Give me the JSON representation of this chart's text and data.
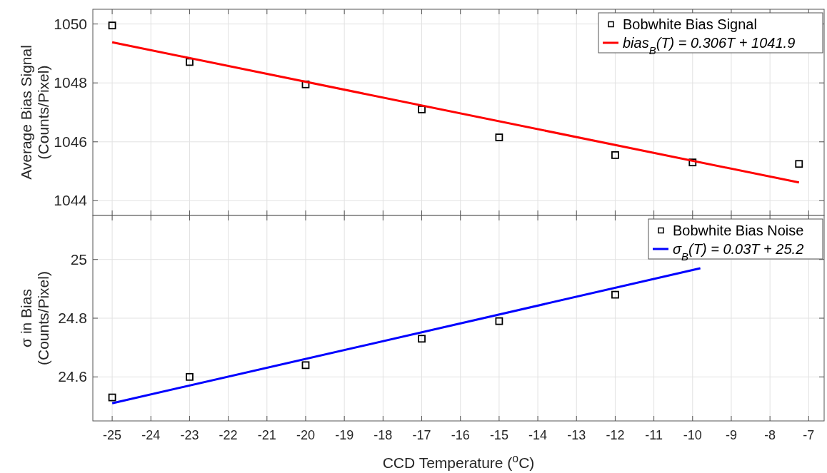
{
  "chart_data": [
    {
      "type": "scatter",
      "ylabel": "Average Bias Signal\n(Counts/Pixel)",
      "xlim": [
        -25.5,
        -6.6
      ],
      "ylim": [
        1043.5,
        1050.5
      ],
      "xticks": [
        -25,
        -24,
        -23,
        -22,
        -21,
        -20,
        -19,
        -18,
        -17,
        -16,
        -15,
        -14,
        -13,
        -12,
        -11,
        -10,
        -9,
        -8,
        -7
      ],
      "yticks": [
        1044,
        1046,
        1048,
        1050
      ],
      "tick_labels": "y",
      "grid": true,
      "legend": "top right",
      "x": [
        -25,
        -23,
        -20,
        -17,
        -15,
        -12,
        -10,
        -7.25
      ],
      "series": [
        {
          "name": "Bobwhite Bias Signal",
          "marker": "square",
          "color": "#000000",
          "values": [
            1049.95,
            1048.71,
            1047.95,
            1047.1,
            1046.15,
            1045.55,
            1045.3,
            1045.25
          ]
        },
        {
          "name": "bias$_{B}$(T) = 0.306T + 1041.9",
          "type": "line",
          "color": "#ff0000",
          "x": [
            -25,
            -7.25
          ],
          "values": [
            1049.38,
            1044.62
          ]
        }
      ]
    },
    {
      "type": "scatter",
      "ylabel": "σ in Bias\n(Counts/Pixel)",
      "xlabel": "CCD Temperature ($^{o}$C)",
      "xlim": [
        -25.5,
        -6.6
      ],
      "ylim": [
        24.45,
        25.15
      ],
      "xticks": [
        -25,
        -24,
        -23,
        -22,
        -21,
        -20,
        -19,
        -18,
        -17,
        -16,
        -15,
        -14,
        -13,
        -12,
        -11,
        -10,
        -9,
        -8,
        -7
      ],
      "yticks": [
        24.6,
        24.8,
        25
      ],
      "grid": true,
      "legend": "top right",
      "x": [
        -25,
        -23,
        -20,
        -17,
        -15,
        -12
      ],
      "series": [
        {
          "name": "Bobwhite Bias Noise",
          "marker": "square",
          "color": "#000000",
          "values": [
            24.53,
            24.6,
            24.64,
            24.73,
            24.79,
            24.88
          ]
        },
        {
          "name": "σ$_{B}$(T) = 0.03T + 25.2",
          "type": "line",
          "color": "#0000ff",
          "x": [
            -25,
            -9.8
          ],
          "values": [
            24.51,
            24.97
          ]
        }
      ]
    }
  ]
}
